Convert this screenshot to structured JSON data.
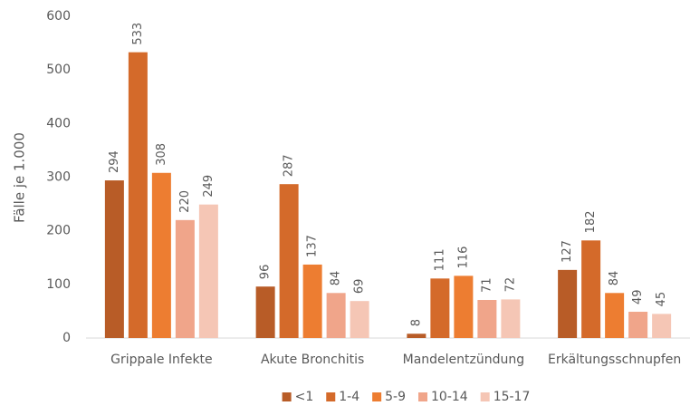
{
  "chart_data": {
    "type": "bar",
    "y_label": "Fälle je 1.000",
    "categories": [
      "Grippale Infekte",
      "Akute Bronchitis",
      "Mandelentzündung",
      "Erkältungsschnupfen"
    ],
    "series": [
      {
        "name": "<1",
        "color": "#b85c27",
        "values": [
          294,
          96,
          8,
          127
        ]
      },
      {
        "name": "1-4",
        "color": "#d46a2a",
        "values": [
          533,
          287,
          111,
          182
        ]
      },
      {
        "name": "5-9",
        "color": "#ed7d31",
        "values": [
          308,
          137,
          116,
          84
        ]
      },
      {
        "name": "10-14",
        "color": "#f0a58a",
        "values": [
          220,
          84,
          71,
          49
        ]
      },
      {
        "name": "15-17",
        "color": "#f5c6b5",
        "values": [
          249,
          69,
          72,
          45
        ]
      }
    ],
    "ylim": [
      0,
      600
    ],
    "yticks": [
      0,
      100,
      200,
      300,
      400,
      500,
      600
    ],
    "grid": false,
    "legend": "bottom"
  }
}
